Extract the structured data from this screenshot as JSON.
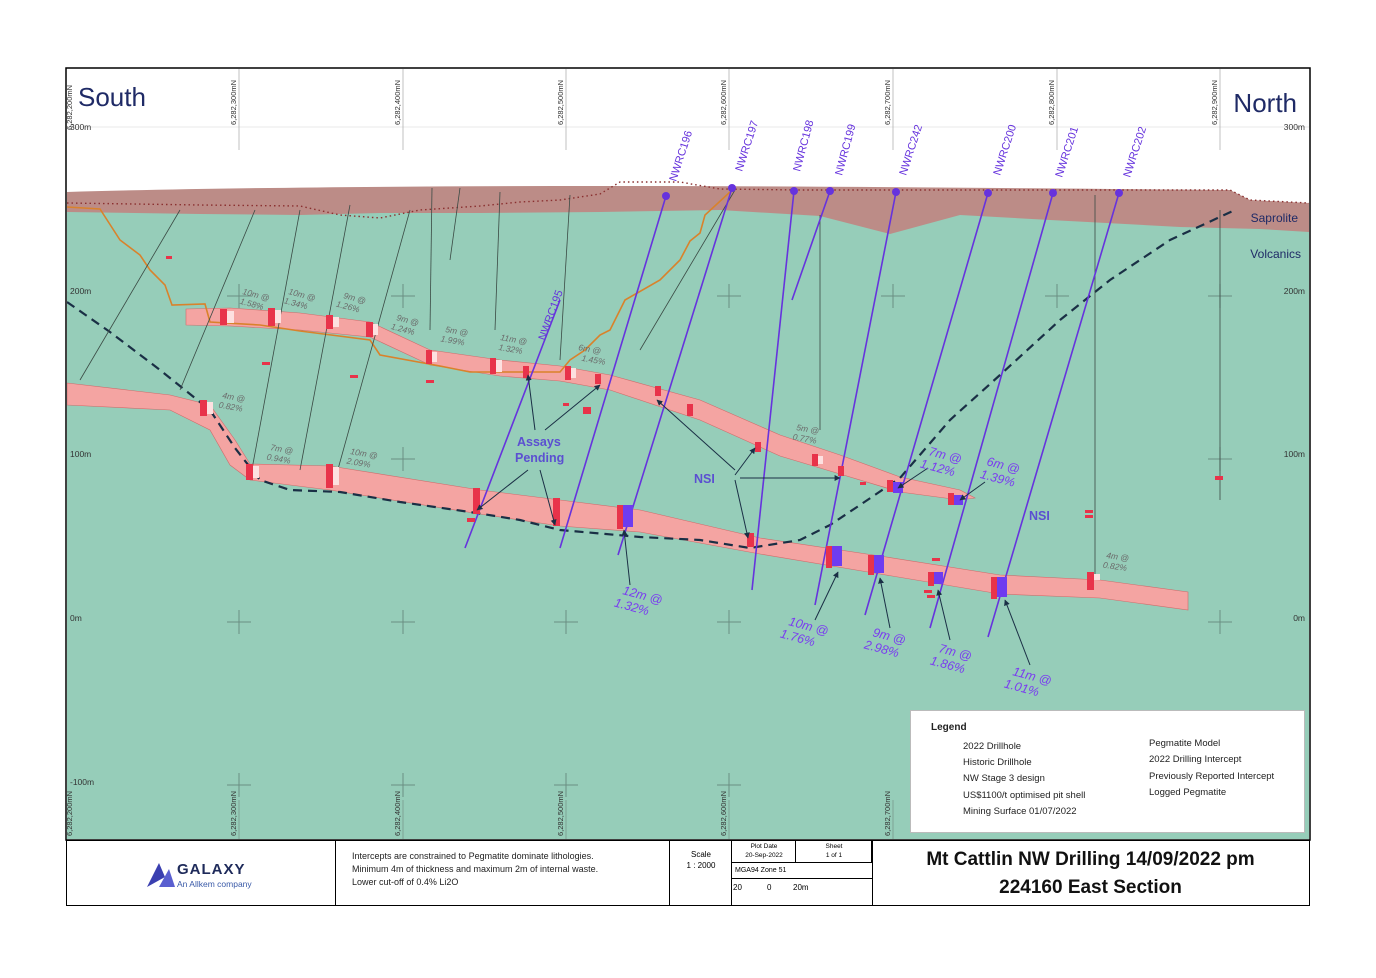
{
  "section": {
    "south": "South",
    "north": "North",
    "layers": {
      "saprolite": "Saprolite",
      "volcanics": "Volcanics"
    },
    "elevations": [
      "300m",
      "200m",
      "100m",
      "0m",
      "-100m"
    ],
    "northings_top": [
      "6,282,200mN",
      "6,282,300mN",
      "6,282,400mN",
      "6,282,500mN",
      "6,282,600mN",
      "6,282,700mN",
      "6,282,800mN",
      "6,282,900mN"
    ],
    "northings_bottom": [
      "6,282,200mN",
      "6,282,300mN",
      "6,282,400mN",
      "6,282,500mN",
      "6,282,600mN",
      "6,282,700mN"
    ],
    "drillholes": [
      "NWRC196",
      "NWRC197",
      "NWRC198",
      "NWRC199",
      "NWRC242",
      "NWRC200",
      "NWRC201",
      "NWRC202",
      "NWRC195"
    ],
    "intercepts_new": [
      {
        "len": "12m @",
        "grade": "1.32%"
      },
      {
        "len": "10m @",
        "grade": "1.76%"
      },
      {
        "len": "9m @",
        "grade": "2.98%"
      },
      {
        "len": "7m @",
        "grade": "1.86%"
      },
      {
        "len": "11m @",
        "grade": "1.01%"
      },
      {
        "len": "7m @",
        "grade": "1.12%"
      },
      {
        "len": "6m @",
        "grade": "1.39%"
      }
    ],
    "intercepts_prev": [
      {
        "len": "10m @",
        "grade": "1.58%"
      },
      {
        "len": "10m @",
        "grade": "1.34%"
      },
      {
        "len": "9m @",
        "grade": "1.26%"
      },
      {
        "len": "9m @",
        "grade": "1.24%"
      },
      {
        "len": "5m @",
        "grade": "1.99%"
      },
      {
        "len": "11m @",
        "grade": "1.32%"
      },
      {
        "len": "6m @",
        "grade": "1.45%"
      },
      {
        "len": "4m @",
        "grade": "0.82%"
      },
      {
        "len": "7m @",
        "grade": "0.94%"
      },
      {
        "len": "10m @",
        "grade": "2.09%"
      },
      {
        "len": "5m @",
        "grade": "0.77%"
      },
      {
        "len": "4m @",
        "grade": "0.82%"
      }
    ],
    "annotations": {
      "assays": "Assays",
      "pending": "Pending",
      "nsi": "NSI"
    }
  },
  "legend": {
    "title": "Legend",
    "items": [
      "2022 Drillhole",
      "Historic Drillhole",
      "NW Stage 3 design",
      "US$1100/t optimised pit shell",
      "Mining Surface 01/07/2022",
      "Pegmatite Model",
      "2022 Drilling Intercept",
      "Previously Reported Intercept",
      "Logged Pegmatite"
    ]
  },
  "titleblock": {
    "company": "GALAXY",
    "company_sub": "An Allkem company",
    "notes": [
      "Intercepts are constrained to Pegmatite dominate lithologies.",
      "Minimum 4m of thickness and maximum 2m of internal waste.",
      "Lower cut-off of 0.4% Li2O"
    ],
    "scale_label": "Scale",
    "scale_value": "1 : 2000",
    "plot_date_label": "Plot Date",
    "plot_date": "20-Sep-2022",
    "sheet_label": "Sheet",
    "sheet_value": "1 of 1",
    "grid": "MGA94 Zone 51",
    "scalebar": [
      "20",
      "0",
      "20m"
    ],
    "title1": "Mt Cattlin NW Drilling 14/09/2022 pm",
    "title2": "224160 East Section"
  },
  "colors": {
    "volcanics": "#96cdb9",
    "saprolite": "#bc8c87",
    "pegmatite": "#f4a4a2",
    "drill2022": "#6633dd",
    "intercept2022": "#6e3cf0",
    "logged": "#e8334a",
    "stage3": "#d9822b",
    "annotation": "#7a3cf0"
  }
}
